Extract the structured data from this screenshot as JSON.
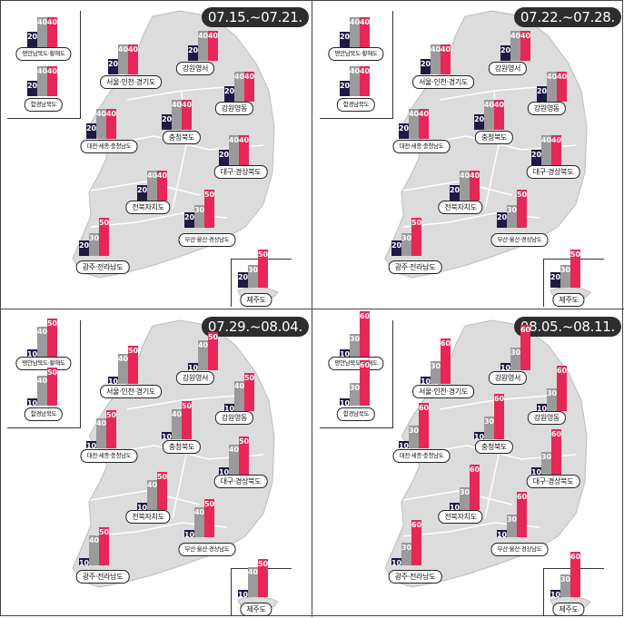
{
  "colors": {
    "map": "#dcdcdc",
    "map_stroke": "#ffffff",
    "bar1": "#1f1a44",
    "bar2": "#9b9b9b",
    "bar3": "#e62757",
    "badge": "#2d2d2d"
  },
  "regions": {
    "pyeongan": "평안남북도·황해도",
    "hamgyeong": "함경남북도",
    "seoul": "서울·인천·경기도",
    "gangwon_w": "강원영서",
    "gangwon_e": "강원영동",
    "daejeon": "대전·세종·충청남도",
    "chungbuk": "충청북도",
    "daegu": "대구·경상북도",
    "jeonbuk": "전북자치도",
    "busan": "부산·울산·경상남도",
    "gwangju": "광주·전라남도",
    "jeju": "제주도"
  },
  "panels": [
    {
      "date": "07.15.~07.21.",
      "values": {
        "pyeongan": [
          20,
          40,
          40
        ],
        "hamgyeong": [
          20,
          40,
          40
        ],
        "seoul": [
          20,
          40,
          40
        ],
        "gangwon_w": [
          20,
          40,
          40
        ],
        "gangwon_e": [
          20,
          40,
          40
        ],
        "daejeon": [
          20,
          40,
          40
        ],
        "chungbuk": [
          20,
          40,
          40
        ],
        "daegu": [
          20,
          40,
          40
        ],
        "jeonbuk": [
          20,
          40,
          40
        ],
        "busan": [
          20,
          30,
          50
        ],
        "gwangju": [
          20,
          30,
          50
        ],
        "jeju": [
          20,
          30,
          50
        ]
      }
    },
    {
      "date": "07.22.~07.28.",
      "values": {
        "pyeongan": [
          20,
          40,
          40
        ],
        "hamgyeong": [
          20,
          40,
          40
        ],
        "seoul": [
          20,
          40,
          40
        ],
        "gangwon_w": [
          20,
          40,
          40
        ],
        "gangwon_e": [
          20,
          40,
          40
        ],
        "daejeon": [
          20,
          40,
          40
        ],
        "chungbuk": [
          20,
          40,
          40
        ],
        "daegu": [
          20,
          40,
          40
        ],
        "jeonbuk": [
          20,
          40,
          40
        ],
        "busan": [
          20,
          30,
          50
        ],
        "gwangju": [
          20,
          30,
          50
        ],
        "jeju": [
          20,
          30,
          50
        ]
      }
    },
    {
      "date": "07.29.~08.04.",
      "values": {
        "pyeongan": [
          10,
          40,
          50
        ],
        "hamgyeong": [
          10,
          40,
          50
        ],
        "seoul": [
          10,
          40,
          50
        ],
        "gangwon_w": [
          10,
          40,
          50
        ],
        "gangwon_e": [
          10,
          40,
          50
        ],
        "daejeon": [
          10,
          40,
          50
        ],
        "chungbuk": [
          10,
          40,
          50
        ],
        "daegu": [
          10,
          40,
          50
        ],
        "jeonbuk": [
          10,
          40,
          50
        ],
        "busan": [
          10,
          40,
          50
        ],
        "gwangju": [
          10,
          40,
          50
        ],
        "jeju": [
          10,
          40,
          50
        ]
      }
    },
    {
      "date": "08.05.~08.11.",
      "values": {
        "pyeongan": [
          10,
          30,
          60
        ],
        "hamgyeong": [
          10,
          30,
          60
        ],
        "seoul": [
          10,
          30,
          60
        ],
        "gangwon_w": [
          10,
          30,
          60
        ],
        "gangwon_e": [
          10,
          30,
          60
        ],
        "daejeon": [
          10,
          30,
          60
        ],
        "chungbuk": [
          10,
          30,
          60
        ],
        "daegu": [
          10,
          30,
          60
        ],
        "jeonbuk": [
          10,
          30,
          60
        ],
        "busan": [
          10,
          30,
          60
        ],
        "gwangju": [
          10,
          30,
          60
        ],
        "jeju": [
          10,
          30,
          60
        ]
      }
    }
  ]
}
